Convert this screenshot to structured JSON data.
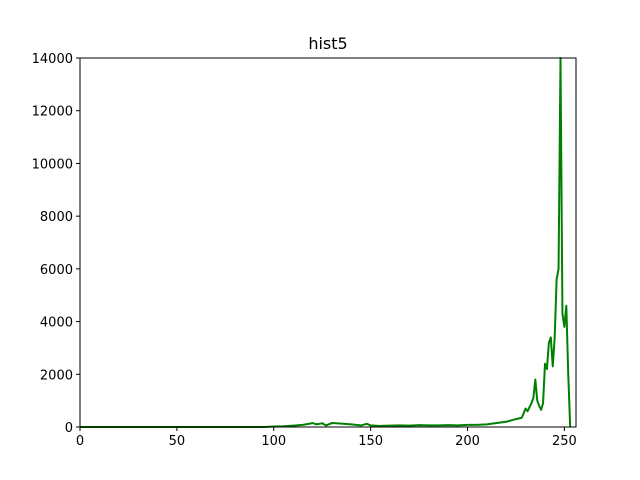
{
  "chart_data": {
    "type": "line",
    "title": "hist5",
    "xlabel": "",
    "ylabel": "",
    "xlim": [
      0,
      256
    ],
    "ylim": [
      0,
      14000
    ],
    "xticks": [
      0,
      50,
      100,
      150,
      200,
      250
    ],
    "yticks": [
      0,
      2000,
      4000,
      6000,
      8000,
      10000,
      12000,
      14000
    ],
    "grid": false,
    "series": [
      {
        "color": "#008000",
        "x": [
          0,
          95,
          100,
          105,
          110,
          115,
          118,
          120,
          122,
          125,
          127,
          130,
          135,
          140,
          145,
          148,
          150,
          155,
          160,
          165,
          170,
          175,
          180,
          185,
          190,
          195,
          200,
          205,
          210,
          215,
          220,
          225,
          228,
          230,
          231,
          232,
          233,
          234,
          235,
          236,
          237,
          238,
          239,
          240,
          241,
          242,
          243,
          244,
          245,
          246,
          247,
          248,
          249,
          250,
          251,
          252,
          253
        ],
        "y": [
          0,
          0,
          20,
          30,
          50,
          80,
          120,
          150,
          100,
          140,
          60,
          150,
          130,
          100,
          60,
          120,
          60,
          40,
          50,
          60,
          50,
          70,
          60,
          60,
          70,
          60,
          80,
          80,
          100,
          150,
          200,
          300,
          350,
          700,
          600,
          750,
          900,
          1100,
          1800,
          1000,
          800,
          650,
          900,
          2400,
          2200,
          3200,
          3400,
          2300,
          3400,
          5600,
          6000,
          14000,
          4300,
          3800,
          4600,
          2000,
          0
        ]
      }
    ]
  }
}
